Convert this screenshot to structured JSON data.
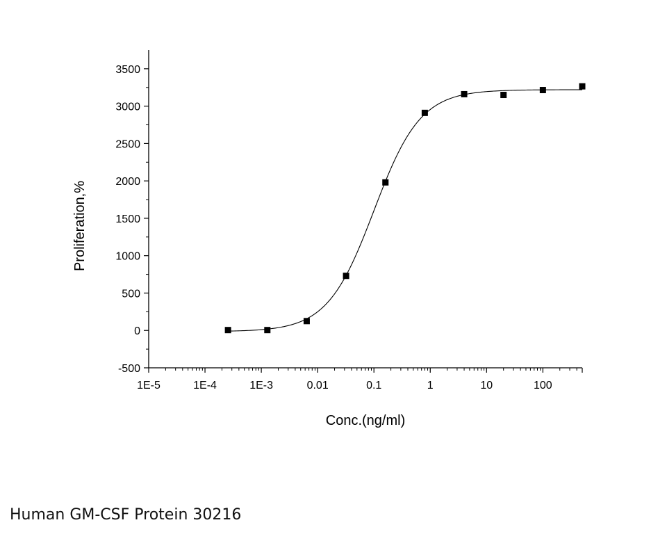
{
  "chart_data": {
    "type": "scatter",
    "xscale": "log",
    "title": "",
    "xlabel": "Conc.(ng/ml)",
    "ylabel": "Proliferation,%",
    "xlim": [
      1e-05,
      500
    ],
    "ylim": [
      -500,
      3750
    ],
    "x_ticks": [
      {
        "value": 1e-05,
        "label": "1E-5"
      },
      {
        "value": 0.0001,
        "label": "1E-4"
      },
      {
        "value": 0.001,
        "label": "1E-3"
      },
      {
        "value": 0.01,
        "label": "0.01"
      },
      {
        "value": 0.1,
        "label": "0.1"
      },
      {
        "value": 1,
        "label": "1"
      },
      {
        "value": 10,
        "label": "10"
      },
      {
        "value": 100,
        "label": "100"
      }
    ],
    "y_ticks": [
      -500,
      0,
      500,
      1000,
      1500,
      2000,
      2500,
      3000,
      3500
    ],
    "series": [
      {
        "name": "data",
        "marker": "square",
        "x": [
          0.000256,
          0.00128,
          0.0064,
          0.032,
          0.16,
          0.8,
          4,
          20,
          100,
          500
        ],
        "y": [
          5,
          5,
          125,
          730,
          1980,
          2910,
          3160,
          3150,
          3215,
          3265
        ]
      }
    ],
    "fit": {
      "type": "4PL",
      "bottom": -15,
      "top": 3220,
      "ec50": 0.1,
      "hill": 1.05
    }
  },
  "caption": "Human GM-CSF Protein 30216"
}
